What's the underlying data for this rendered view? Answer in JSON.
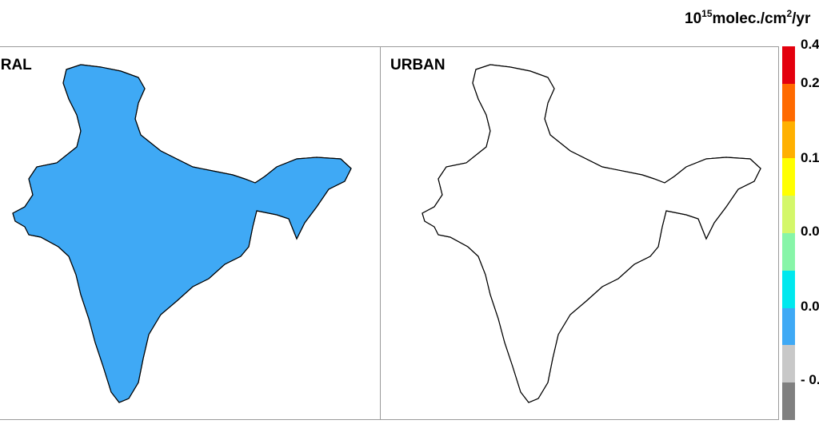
{
  "unit_label": {
    "prefix": "10",
    "exponent": "15",
    "middle": "molec./cm",
    "exponent2": "2",
    "suffix": "/yr"
  },
  "panels": [
    {
      "id": "rural",
      "title": "URAL"
    },
    {
      "id": "urban",
      "title": "URBAN"
    }
  ],
  "colorbar": {
    "colors": [
      "#e3000e",
      "#ff6a00",
      "#ffb000",
      "#ffff00",
      "#d4f76a",
      "#87f5a8",
      "#00e8ee",
      "#3fa9f5",
      "#c8c8c8",
      "#808080"
    ],
    "tick_labels": [
      "0.4",
      "0.2",
      "0.1",
      "0.0",
      "0.0",
      "- 0."
    ]
  },
  "colors": {
    "land_gray": "#c4c4c4",
    "blue": "#3fa9f5",
    "cyan": "#00e8ee",
    "green": "#87f5a8",
    "yellow": "#ffff00",
    "orange": "#ffb000",
    "red": "#e3000e",
    "outline": "#000000"
  }
}
